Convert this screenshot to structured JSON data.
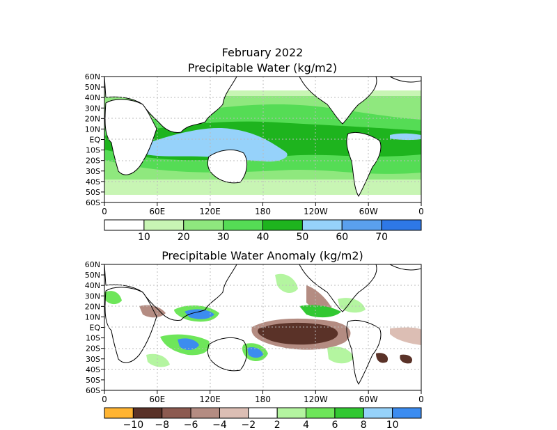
{
  "title_line1": "February 2022",
  "panel1": {
    "title": "Precipitable Water (kg/m2)",
    "lat_labels": [
      "60N",
      "50N",
      "40N",
      "30N",
      "20N",
      "10N",
      "EQ",
      "10S",
      "20S",
      "30S",
      "40S",
      "50S",
      "60S"
    ],
    "lon_labels": [
      "0",
      "60E",
      "120E",
      "180",
      "120W",
      "60W",
      "0"
    ],
    "colorbar": {
      "colors": [
        "#ffffff",
        "#c8f5b4",
        "#8fe87e",
        "#55dc55",
        "#1eb41e",
        "#96d2fa",
        "#5aa0ee",
        "#2e78e6"
      ],
      "labels": [
        "10",
        "20",
        "30",
        "40",
        "50",
        "60",
        "70"
      ]
    }
  },
  "panel2": {
    "title": "Precipitable Water Anomaly (kg/m2)",
    "lat_labels": [
      "60N",
      "50N",
      "40N",
      "30N",
      "20N",
      "10N",
      "EQ",
      "10S",
      "20S",
      "30S",
      "40S",
      "50S",
      "60S"
    ],
    "lon_labels": [
      "0",
      "60E",
      "120E",
      "180",
      "120W",
      "60W",
      "0"
    ],
    "colorbar": {
      "colors": [
        "#ffb432",
        "#5a3228",
        "#8c5a50",
        "#b48c82",
        "#dcbeb4",
        "#ffffff",
        "#b4f5a0",
        "#6ee65a",
        "#32c832",
        "#96d2fa",
        "#3c8cf0"
      ],
      "labels": [
        "−10",
        "−8",
        "−6",
        "−4",
        "−2",
        "2",
        "4",
        "6",
        "8",
        "10"
      ]
    }
  },
  "colors": {
    "land_outline": "#000000",
    "grid": "#bbbbbb"
  }
}
